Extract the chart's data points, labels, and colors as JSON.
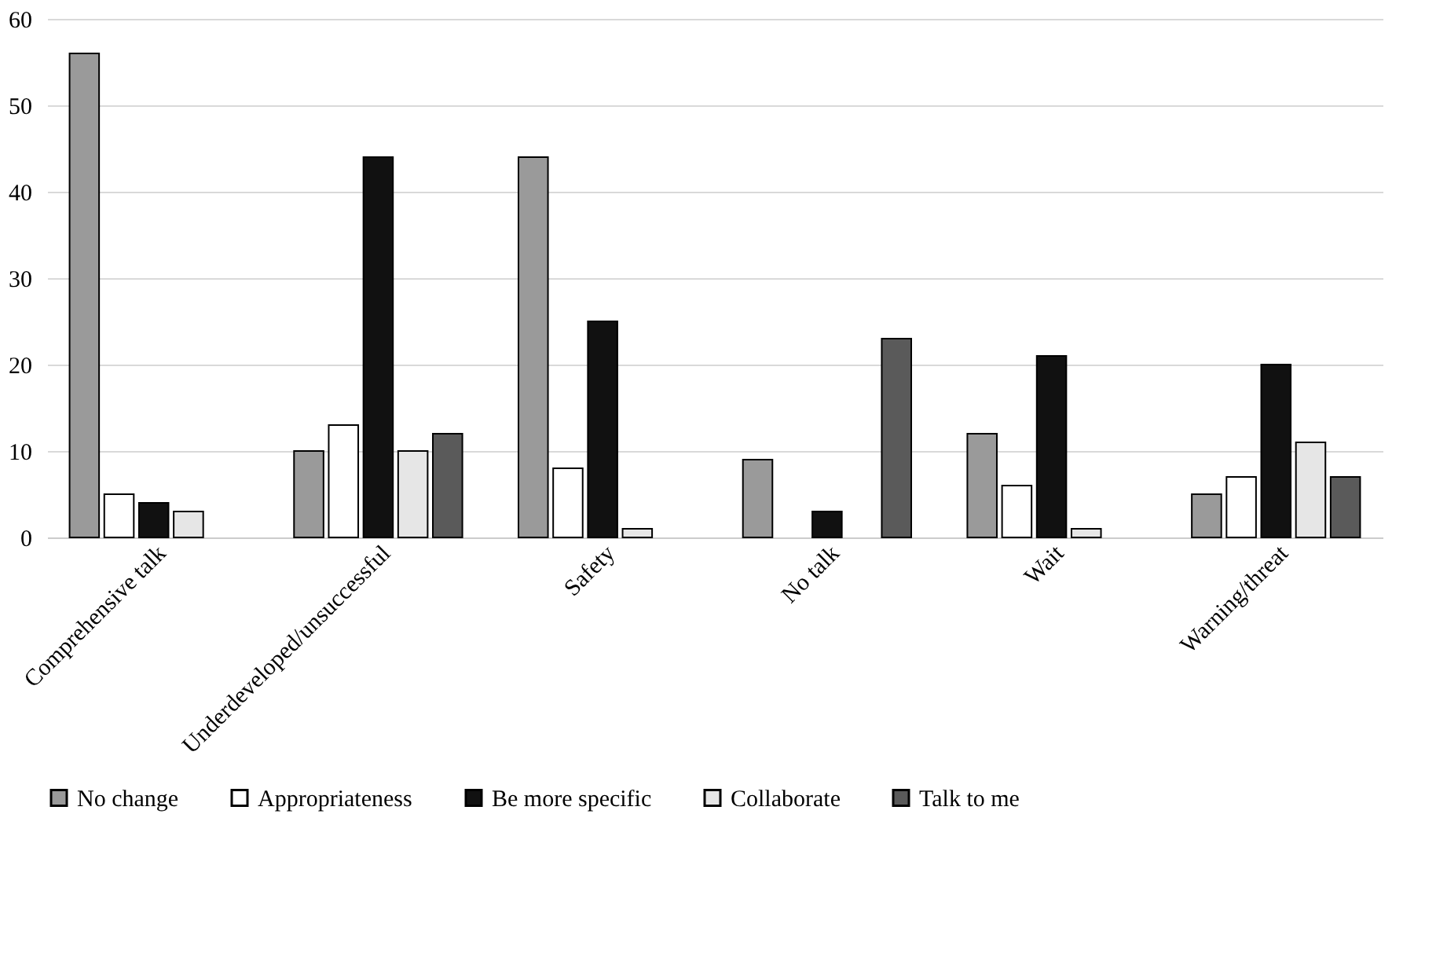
{
  "chart_data": {
    "type": "bar",
    "categories": [
      "Comprehensive talk",
      "Underdeveloped/unsuccessful",
      "Safety",
      "No talk",
      "Wait",
      "Warning/threat"
    ],
    "series": [
      {
        "name": "No change",
        "color": "#9a9a9a",
        "values": [
          56,
          10,
          44,
          9,
          12,
          5
        ]
      },
      {
        "name": "Appropriateness",
        "color": "#ffffff",
        "values": [
          5,
          13,
          8,
          null,
          6,
          7
        ]
      },
      {
        "name": "Be more specific",
        "color": "#111111",
        "values": [
          4,
          44,
          25,
          3,
          21,
          20
        ]
      },
      {
        "name": "Collaborate",
        "color": "#e6e6e6",
        "values": [
          3,
          10,
          1,
          null,
          1,
          11
        ]
      },
      {
        "name": "Talk to me",
        "color": "#5a5a5a",
        "values": [
          null,
          12,
          null,
          23,
          null,
          7
        ]
      }
    ],
    "ylim": [
      0,
      60
    ],
    "yticks": [
      0,
      10,
      20,
      30,
      40,
      50,
      60
    ],
    "grid": "y",
    "legend": "bottom"
  }
}
